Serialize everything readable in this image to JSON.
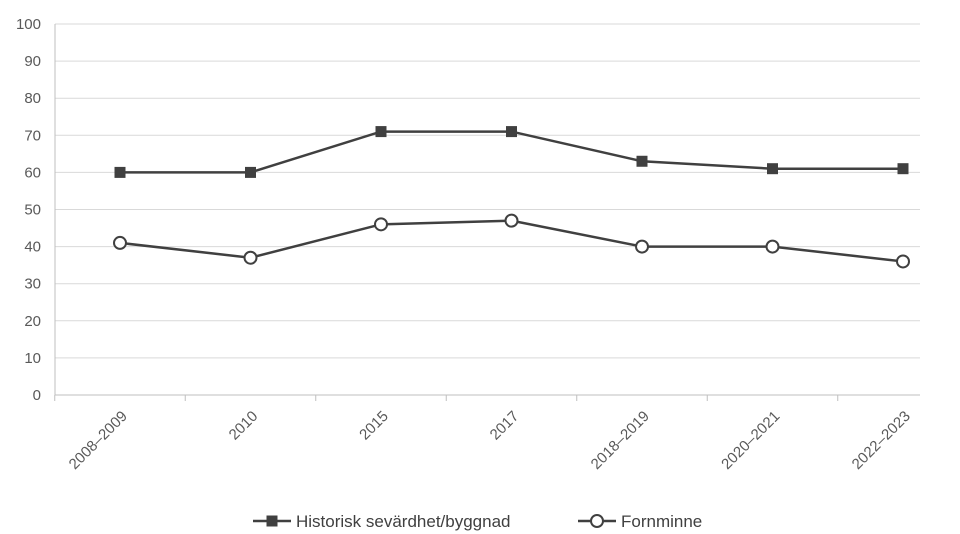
{
  "chart_data": {
    "type": "line",
    "title": "",
    "xlabel": "",
    "ylabel": "",
    "categories": [
      "2008–2009",
      "2010",
      "2015",
      "2017",
      "2018–2019",
      "2020–2021",
      "2022–2023"
    ],
    "ylim": [
      0,
      100
    ],
    "yticks": [
      "0",
      "10",
      "20",
      "30",
      "40",
      "50",
      "60",
      "70",
      "80",
      "90",
      "100"
    ],
    "grid": true,
    "legend_position": "bottom",
    "series": [
      {
        "name": "Historisk sevärdhet/byggnad",
        "values": [
          60,
          60,
          71,
          71,
          63,
          61,
          61
        ],
        "marker": "filled-square",
        "color": "#404040"
      },
      {
        "name": "Fornminne",
        "values": [
          41,
          37,
          46,
          47,
          40,
          40,
          36
        ],
        "marker": "hollow-circle",
        "color": "#404040"
      }
    ]
  }
}
